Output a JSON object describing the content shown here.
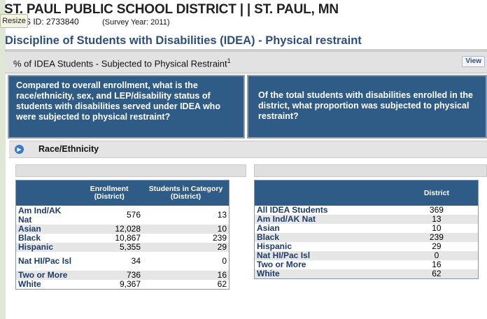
{
  "header": {
    "district": "ST. PAUL PUBLIC SCHOOL DISTRICT",
    "separator": "| |",
    "city": "ST. PAUL, MN",
    "id_label": "S ID: 2733840",
    "survey_year": "(Survey Year: 2011)",
    "resize_label": "Resize"
  },
  "section_title": "Discipline of Students with Disabilities (IDEA) - Physical restraint",
  "measure": {
    "label": "% of IDEA Students - Subjected to Physical Restraint",
    "footnote": "1",
    "view_label": "View"
  },
  "questions": {
    "left": "Compared to overall enrollment, what is the race/ethnicity, sex, and LEP/disability status of students with disabilities served under IDEA who were subjected to physical restraint?",
    "right": "Of the total students with disabilities enrolled in the district, what proportion was subjected to physical restraint?"
  },
  "race_section": {
    "label": "Race/Ethnicity",
    "expand_icon": "arrow-right-circle-icon",
    "accent": "#2f5b87"
  },
  "enrollment_table": {
    "headers": [
      "",
      "Enrollment (District)",
      "Students in Category (District)"
    ],
    "rows": [
      {
        "category": "Am Ind/AK Nat",
        "enrollment": "576",
        "students": "13"
      },
      {
        "category": "Asian",
        "enrollment": "12,028",
        "students": "10"
      },
      {
        "category": "Black",
        "enrollment": "10,867",
        "students": "239"
      },
      {
        "category": "Hispanic",
        "enrollment": "5,355",
        "students": "29"
      },
      {
        "category": "Nat HI/Pac Isl",
        "enrollment": "34",
        "students": "0"
      },
      {
        "category": "Two or More",
        "enrollment": "736",
        "students": "16"
      },
      {
        "category": "White",
        "enrollment": "9,367",
        "students": "62"
      }
    ]
  },
  "district_table": {
    "headers": [
      "",
      "District"
    ],
    "rows": [
      {
        "category": "All IDEA Students",
        "value": "369"
      },
      {
        "category": "Am Ind/AK Nat",
        "value": "13"
      },
      {
        "category": "Asian",
        "value": "10"
      },
      {
        "category": "Black",
        "value": "239"
      },
      {
        "category": "Hispanic",
        "value": "29"
      },
      {
        "category": "Nat HI/Pac Isl",
        "value": "0"
      },
      {
        "category": "Two or More",
        "value": "16"
      },
      {
        "category": "White",
        "value": "62"
      }
    ]
  }
}
